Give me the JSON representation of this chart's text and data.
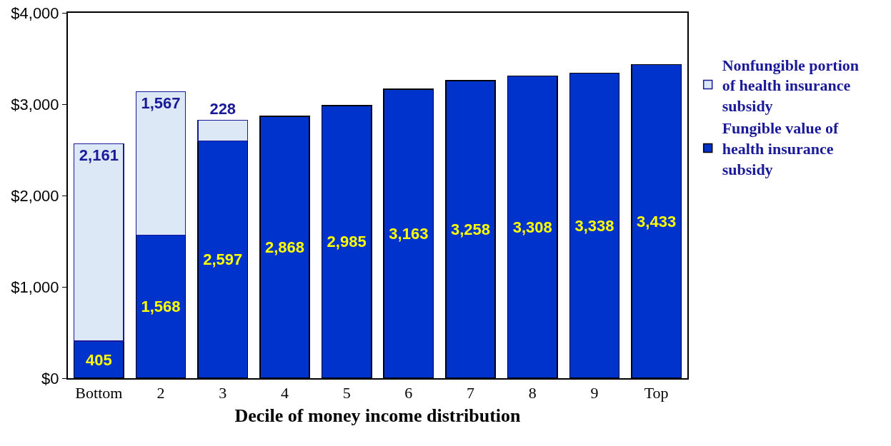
{
  "chart_data": {
    "type": "bar",
    "stacked": true,
    "xlabel": "Decile of money income distribution",
    "categories": [
      "Bottom",
      "2",
      "3",
      "4",
      "5",
      "6",
      "7",
      "8",
      "9",
      "Top"
    ],
    "series": [
      {
        "name": "Fungible value of health insurance subsidy",
        "color": "#0033cc",
        "values": [
          405,
          1568,
          2597,
          2868,
          2985,
          3163,
          3258,
          3308,
          3338,
          3433
        ],
        "value_labels": [
          "405",
          "1,568",
          "2,597",
          "2,868",
          "2,985",
          "3,163",
          "3,258",
          "3,308",
          "3,338",
          "3,433"
        ]
      },
      {
        "name": "Nonfungible portion of health insurance subsidy",
        "color": "#dde8f6",
        "values": [
          2161,
          1567,
          228,
          null,
          null,
          null,
          null,
          null,
          null,
          null
        ],
        "value_labels": [
          "2,161",
          "1,567",
          "228",
          null,
          null,
          null,
          null,
          null,
          null,
          null
        ]
      }
    ],
    "ylim": [
      0,
      4000
    ],
    "yticks": [
      {
        "value": 0,
        "label": "$0"
      },
      {
        "value": 1000,
        "label": "$1,000"
      },
      {
        "value": 2000,
        "label": "$2,000"
      },
      {
        "value": 3000,
        "label": "$3,000"
      },
      {
        "value": 4000,
        "label": "$4,000"
      }
    ],
    "grid": false,
    "legend": "right"
  }
}
